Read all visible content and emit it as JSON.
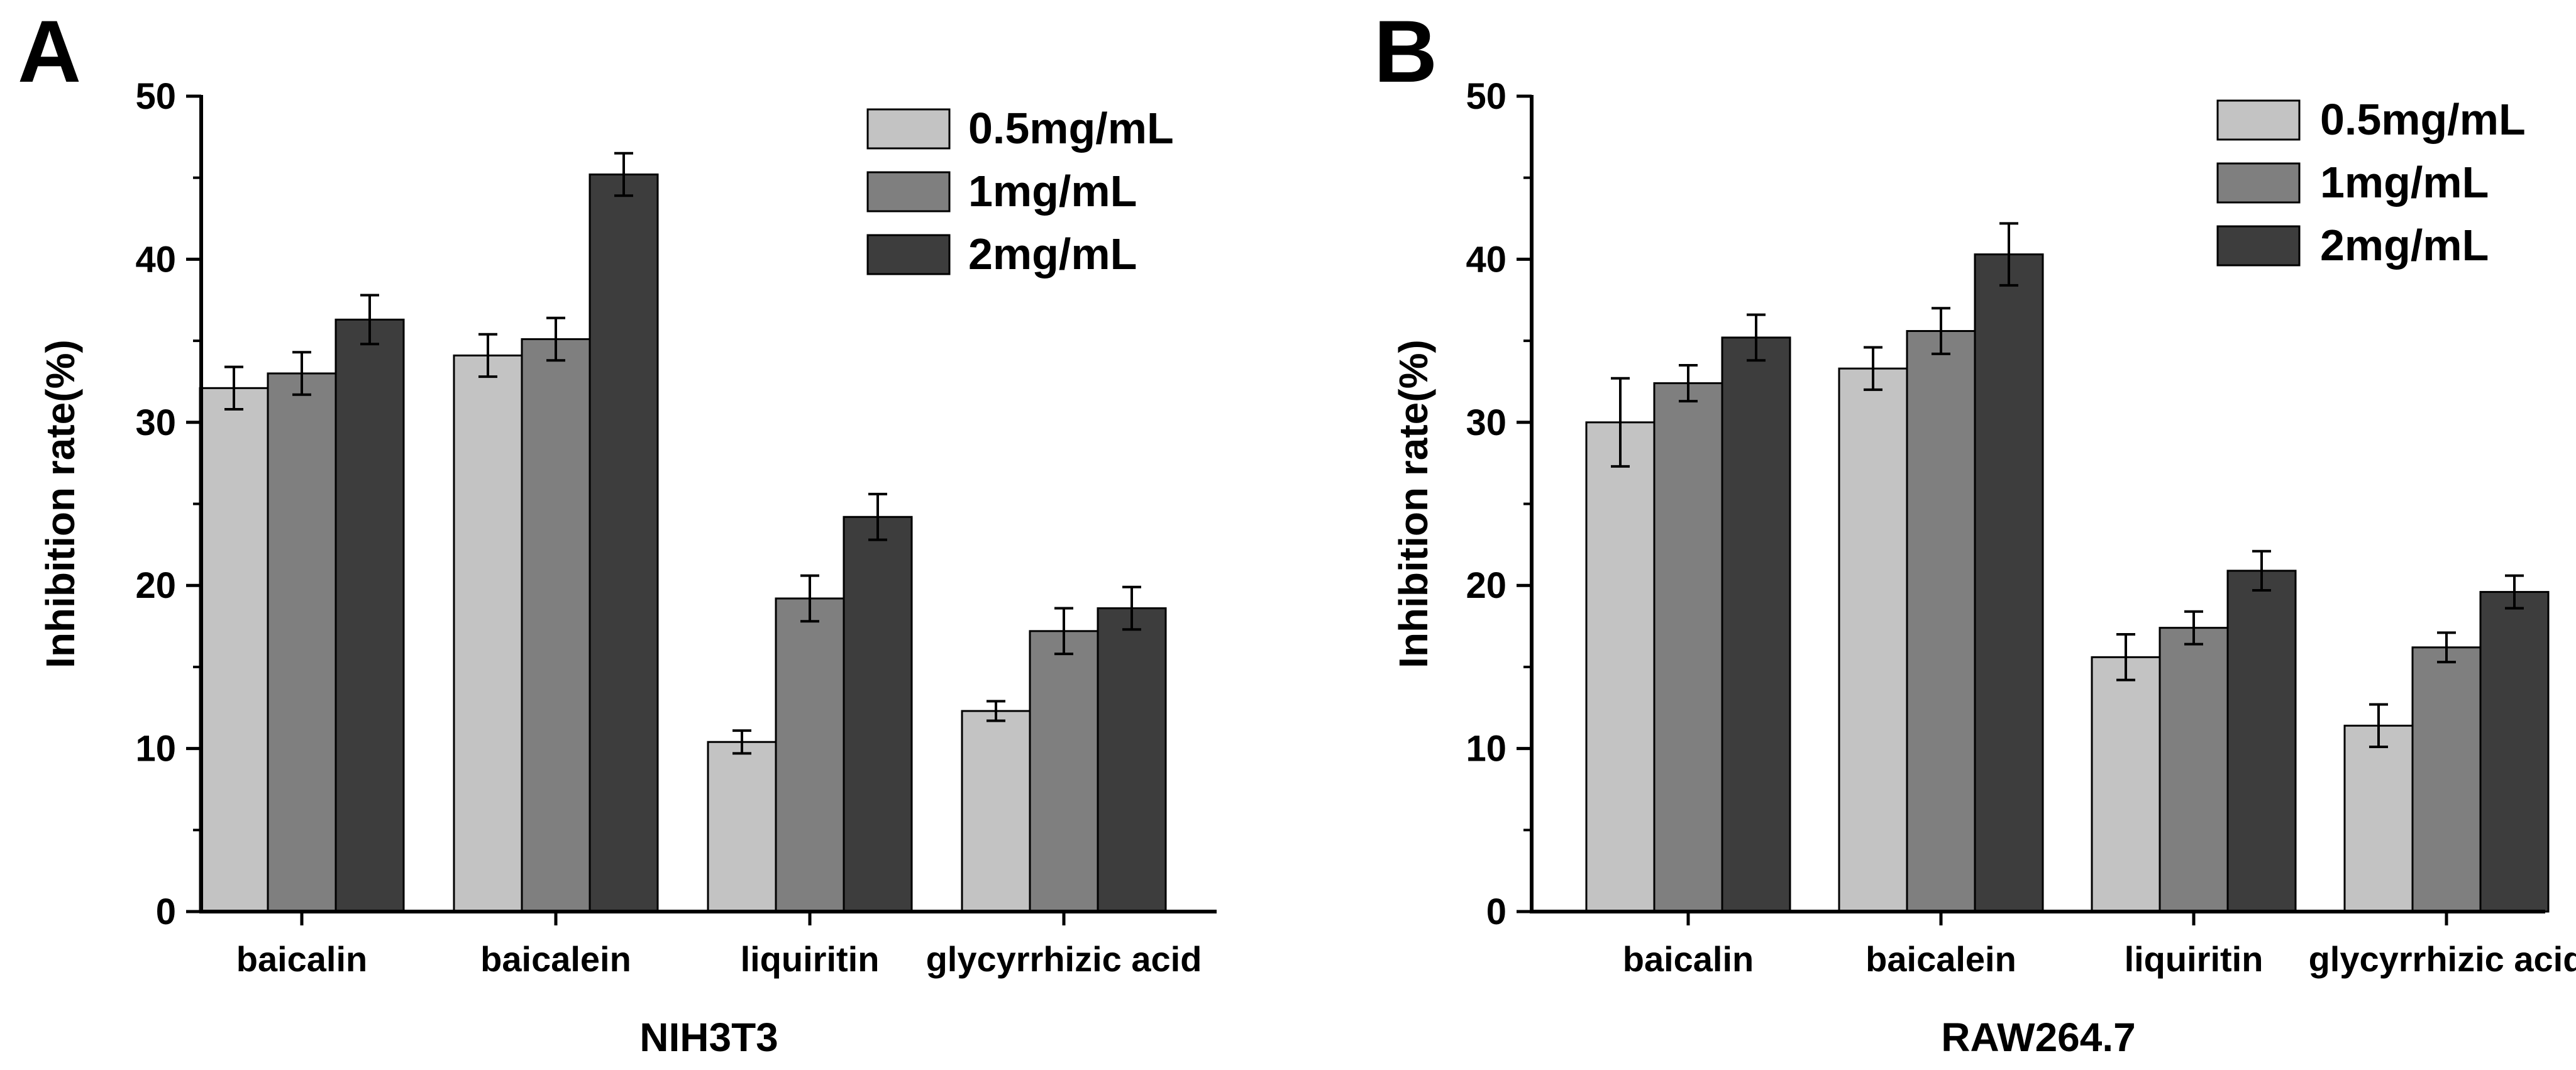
{
  "chart_data": [
    {
      "type": "bar",
      "panel_label": "A",
      "title": "",
      "xlabel": "NIH3T3",
      "ylabel": "Inhibition rate(%)",
      "ylim": [
        0,
        50
      ],
      "yticks": [
        "0",
        "10",
        "20",
        "30",
        "40",
        "50"
      ],
      "categories": [
        "baicalin",
        "baicalein",
        "liquiritin",
        "glycyrrhizic acid"
      ],
      "legend_position": "top-right",
      "series": [
        {
          "name": "0.5mg/mL",
          "color": "#c3c3c3",
          "values": [
            32.1,
            34.1,
            10.4,
            12.3
          ],
          "errors": [
            1.3,
            1.3,
            0.7,
            0.6
          ]
        },
        {
          "name": "1mg/mL",
          "color": "#7f7f7f",
          "values": [
            33.0,
            35.1,
            19.2,
            17.2
          ],
          "errors": [
            1.3,
            1.3,
            1.4,
            1.4
          ]
        },
        {
          "name": "2mg/mL",
          "color": "#3d3d3d",
          "values": [
            36.3,
            45.2,
            24.2,
            18.6
          ],
          "errors": [
            1.5,
            1.3,
            1.4,
            1.3
          ]
        }
      ]
    },
    {
      "type": "bar",
      "panel_label": "B",
      "title": "",
      "xlabel": "RAW264.7",
      "ylabel": "Inhibition rate(%)",
      "ylim": [
        0,
        50
      ],
      "yticks": [
        "0",
        "10",
        "20",
        "30",
        "40",
        "50"
      ],
      "categories": [
        "baicalin",
        "baicalein",
        "liquiritin",
        "glycyrrhizic acid"
      ],
      "legend_position": "top-right",
      "series": [
        {
          "name": "0.5mg/mL",
          "color": "#c3c3c3",
          "values": [
            30.0,
            33.3,
            15.6,
            11.4
          ],
          "errors": [
            2.7,
            1.3,
            1.4,
            1.3
          ]
        },
        {
          "name": "1mg/mL",
          "color": "#7f7f7f",
          "values": [
            32.4,
            35.6,
            17.4,
            16.2
          ],
          "errors": [
            1.1,
            1.4,
            1.0,
            0.9
          ]
        },
        {
          "name": "2mg/mL",
          "color": "#3d3d3d",
          "values": [
            35.2,
            40.3,
            20.9,
            19.6
          ],
          "errors": [
            1.4,
            1.9,
            1.2,
            1.0
          ]
        }
      ]
    }
  ]
}
